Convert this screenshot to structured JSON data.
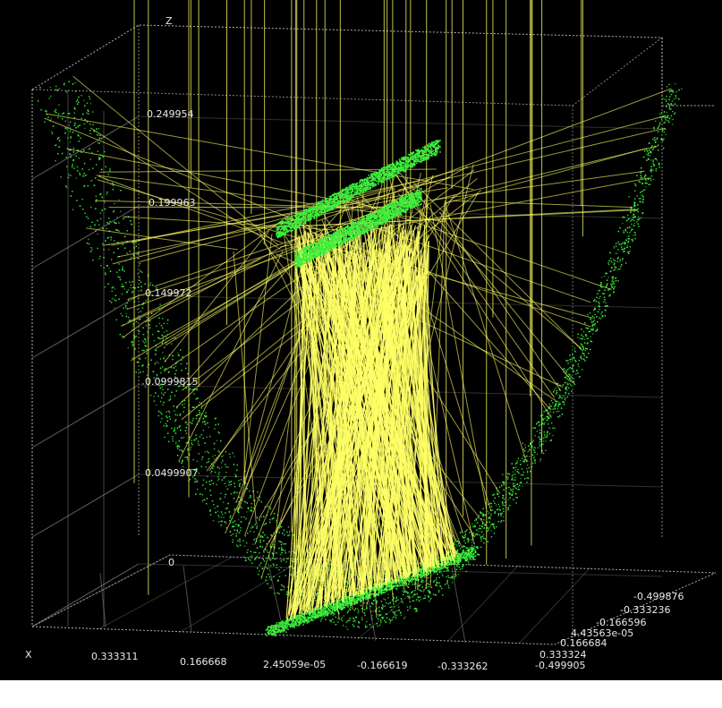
{
  "colors": {
    "background": "#000000",
    "axes": "#dcdcdc",
    "grid": "#8a8a8a",
    "rays": "#ffff66",
    "points": "#3cf03c",
    "text": "#e8e8e8"
  },
  "axes": {
    "x_axis_name": "X",
    "z_axis_name": "Z",
    "x_ticks": [
      "0.333311",
      "0.166668",
      "2.45059e-05",
      "-0.166619",
      "-0.333262"
    ],
    "z_ticks": [
      "0",
      "0.0499907",
      "0.0999815",
      "0.149972",
      "0.199963",
      "0.249954"
    ],
    "y_ticks": [
      "-0.499876",
      "-0.333236",
      "-0.166596",
      "4.43563e-05",
      "0.166684",
      "0.333324",
      "-0.499905"
    ]
  },
  "scene": {
    "type": "3d-ray-trace",
    "reflector_shape": "parabolic trough",
    "point_color_name": "green-points",
    "ray_color_name": "yellow-rays"
  }
}
